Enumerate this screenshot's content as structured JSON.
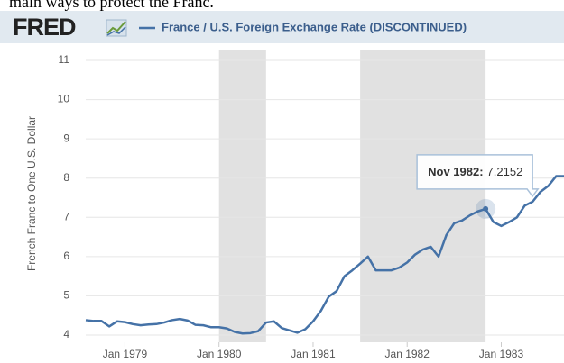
{
  "caption": "main ways to protect the Franc.",
  "chart_data": {
    "type": "line",
    "logo": "FRED",
    "title": "France / U.S. Foreign Exchange Rate (DISCONTINUED)",
    "y_label": "French Franc to One U.S. Dollar",
    "x": [
      "1978-08",
      "1978-09",
      "1978-10",
      "1978-11",
      "1978-12",
      "1979-01",
      "1979-02",
      "1979-03",
      "1979-04",
      "1979-05",
      "1979-06",
      "1979-07",
      "1979-08",
      "1979-09",
      "1979-10",
      "1979-11",
      "1979-12",
      "1980-01",
      "1980-02",
      "1980-03",
      "1980-04",
      "1980-05",
      "1980-06",
      "1980-07",
      "1980-08",
      "1980-09",
      "1980-10",
      "1980-11",
      "1980-12",
      "1981-01",
      "1981-02",
      "1981-03",
      "1981-04",
      "1981-05",
      "1981-06",
      "1981-07",
      "1981-08",
      "1981-09",
      "1981-10",
      "1981-11",
      "1981-12",
      "1982-01",
      "1982-02",
      "1982-03",
      "1982-04",
      "1982-05",
      "1982-06",
      "1982-07",
      "1982-08",
      "1982-09",
      "1982-10",
      "1982-11",
      "1982-12",
      "1983-01",
      "1983-02",
      "1983-03",
      "1983-04",
      "1983-05",
      "1983-06",
      "1983-07",
      "1983-08",
      "1983-09"
    ],
    "series": [
      {
        "name": "France / U.S. Foreign Exchange Rate (DISCONTINUED)",
        "color": "#4572a7",
        "values": [
          4.38,
          4.36,
          4.36,
          4.22,
          4.35,
          4.33,
          4.28,
          4.25,
          4.27,
          4.28,
          4.32,
          4.38,
          4.41,
          4.37,
          4.26,
          4.25,
          4.2,
          4.2,
          4.17,
          4.08,
          4.04,
          4.05,
          4.1,
          4.32,
          4.35,
          4.18,
          4.12,
          4.06,
          4.15,
          4.35,
          4.62,
          4.98,
          5.12,
          5.5,
          5.65,
          5.82,
          6.0,
          5.65,
          5.65,
          5.65,
          5.72,
          5.85,
          6.05,
          6.18,
          6.25,
          6.0,
          6.55,
          6.85,
          6.92,
          7.05,
          7.15,
          7.2152,
          6.88,
          6.78,
          6.88,
          7.0,
          7.3,
          7.4,
          7.65,
          7.8,
          8.05,
          8.05
        ]
      }
    ],
    "xlim": [
      "1978-08",
      "1983-09"
    ],
    "xticks": [
      {
        "value": "1979-01",
        "label": "Jan 1979"
      },
      {
        "value": "1980-01",
        "label": "Jan 1980"
      },
      {
        "value": "1981-01",
        "label": "Jan 1981"
      },
      {
        "value": "1982-01",
        "label": "Jan 1982"
      },
      {
        "value": "1983-01",
        "label": "Jan 1983"
      }
    ],
    "ylim": [
      4,
      11
    ],
    "yticks": [
      4,
      5,
      6,
      7,
      8,
      9,
      10,
      11
    ],
    "grid": true,
    "recessions": [
      [
        "1980-01",
        "1980-07"
      ],
      [
        "1981-07",
        "1982-11"
      ]
    ],
    "tooltip": {
      "x": "1982-11",
      "label": "Nov 1982:"
    }
  }
}
